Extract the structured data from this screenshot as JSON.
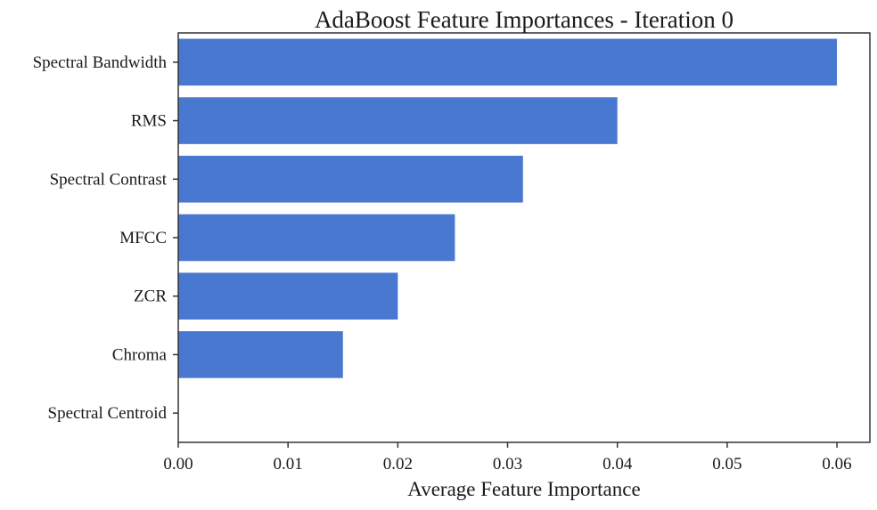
{
  "chart_data": {
    "type": "bar",
    "orientation": "horizontal",
    "title": "AdaBoost Feature Importances - Iteration 0",
    "xlabel": "Average Feature Importance",
    "ylabel": "",
    "categories": [
      "Spectral Bandwidth",
      "RMS",
      "Spectral Contrast",
      "MFCC",
      "ZCR",
      "Chroma",
      "Spectral Centroid"
    ],
    "values": [
      0.06,
      0.04,
      0.0314,
      0.0252,
      0.02,
      0.015,
      0.0
    ],
    "xlim": [
      0,
      0.063
    ],
    "xticks": [
      0.0,
      0.01,
      0.02,
      0.03,
      0.04,
      0.05,
      0.06
    ],
    "xtick_labels": [
      "0.00",
      "0.01",
      "0.02",
      "0.03",
      "0.04",
      "0.05",
      "0.06"
    ],
    "grid": false,
    "bar_color": "#4878cf"
  }
}
